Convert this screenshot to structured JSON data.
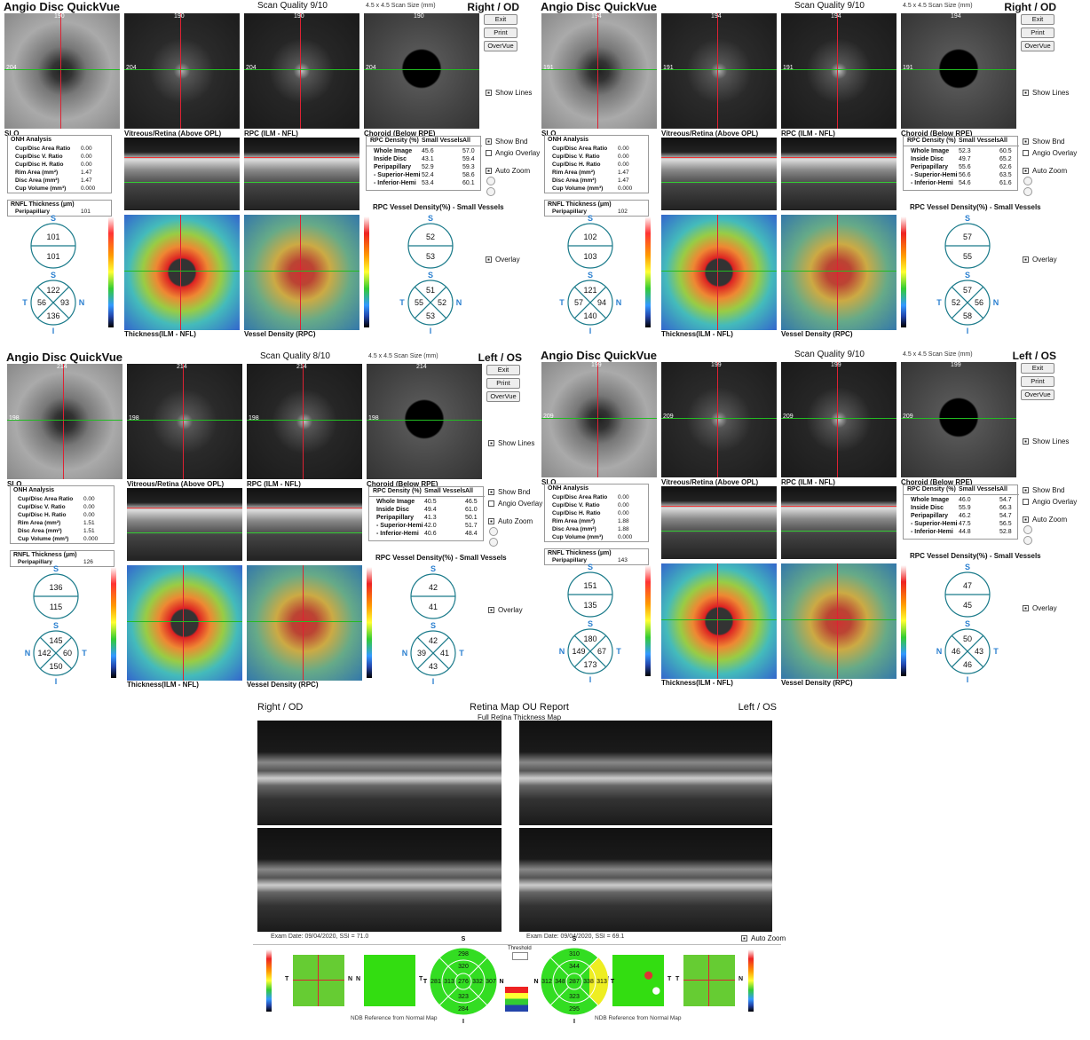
{
  "panels": [
    {
      "app_title": "Angio Disc QuickVue",
      "scan_quality": "Scan Quality 9/10",
      "scan_size": "4.5 x 4.5 Scan Size (mm)",
      "eye": "Right / OD",
      "buttons": [
        "Exit",
        "Print",
        "OverVue"
      ],
      "image_labels": [
        "SLO",
        "Vitreous/Retina (Above OPL)",
        "RPC (ILM - NFL)",
        "Choroid (Below RPE)"
      ],
      "line_labels": [
        "190",
        "204"
      ],
      "options": [
        "Show Lines",
        "Show Bnd",
        "Angio Overlay",
        "Auto Zoom",
        "Overlay"
      ],
      "onh": {
        "title": "ONH Analysis",
        "rows": [
          [
            "Cup/Disc Area Ratio",
            "0.00"
          ],
          [
            "Cup/Disc V. Ratio",
            "0.00"
          ],
          [
            "Cup/Disc H. Ratio",
            "0.00"
          ],
          [
            "Rim Area (mm²)",
            "1.47"
          ],
          [
            "Disc Area (mm²)",
            "1.47"
          ],
          [
            "Cup Volume (mm³)",
            "0.000"
          ]
        ]
      },
      "rnfl": {
        "title": "RNFL Thickness (µm)",
        "rows": [
          [
            "Peripapillary",
            "101"
          ]
        ]
      },
      "rpc": {
        "header": [
          "RPC Density (%)",
          "Small Vessels",
          "All"
        ],
        "rows": [
          [
            "Whole Image",
            "45.6",
            "57.0"
          ],
          [
            "Inside Disc",
            "43.1",
            "59.4"
          ],
          [
            "Peripapillary",
            "52.9",
            "59.3"
          ],
          [
            "- Superior-Hemi",
            "52.4",
            "58.6"
          ],
          [
            "- Inferior-Hemi",
            "53.4",
            "60.1"
          ]
        ]
      },
      "rpc_title": "RPC Vessel Density(%) - Small Vessels",
      "map_labels": [
        "Thickness(ILM - NFL)",
        "Vessel Density (RPC)"
      ],
      "rnfl_hemi": {
        "labels": [
          "S"
        ],
        "values": [
          101,
          101
        ]
      },
      "rnfl_quad": {
        "labels": [
          "S",
          "T",
          "N",
          "I"
        ],
        "values": [
          122,
          56,
          93,
          136
        ]
      },
      "vd_hemi": {
        "labels": [
          "S"
        ],
        "values": [
          52,
          53
        ]
      },
      "vd_quad": {
        "labels": [
          "S",
          "T",
          "N",
          "I"
        ],
        "values": [
          51,
          55,
          52,
          53
        ]
      }
    },
    {
      "app_title": "Angio Disc QuickVue",
      "scan_quality": "Scan Quality 9/10",
      "scan_size": "4.5 x 4.5 Scan Size (mm)",
      "eye": "Right / OD",
      "buttons": [
        "Exit",
        "Print",
        "OverVue"
      ],
      "image_labels": [
        "SLO",
        "Vitreous/Retina (Above OPL)",
        "RPC (ILM - NFL)",
        "Choroid (Below RPE)"
      ],
      "line_labels": [
        "194",
        "191"
      ],
      "options": [
        "Show Lines",
        "Show Bnd",
        "Angio Overlay",
        "Auto Zoom",
        "Overlay"
      ],
      "onh": {
        "title": "ONH Analysis",
        "rows": [
          [
            "Cup/Disc Area Ratio",
            "0.00"
          ],
          [
            "Cup/Disc V. Ratio",
            "0.00"
          ],
          [
            "Cup/Disc H. Ratio",
            "0.00"
          ],
          [
            "Rim Area (mm²)",
            "1.47"
          ],
          [
            "Disc Area (mm²)",
            "1.47"
          ],
          [
            "Cup Volume (mm³)",
            "0.000"
          ]
        ]
      },
      "rnfl": {
        "title": "RNFL Thickness (µm)",
        "rows": [
          [
            "Peripapillary",
            "102"
          ]
        ]
      },
      "rpc": {
        "header": [
          "RPC Density (%)",
          "Small Vessels",
          "All"
        ],
        "rows": [
          [
            "Whole Image",
            "52.3",
            "60.5"
          ],
          [
            "Inside Disc",
            "49.7",
            "65.2"
          ],
          [
            "Peripapillary",
            "55.6",
            "62.6"
          ],
          [
            "- Superior-Hemi",
            "56.6",
            "63.5"
          ],
          [
            "- Inferior-Hemi",
            "54.6",
            "61.6"
          ]
        ]
      },
      "rpc_title": "RPC Vessel Density(%) - Small Vessels",
      "map_labels": [
        "Thickness(ILM - NFL)",
        "Vessel Density (RPC)"
      ],
      "rnfl_hemi": {
        "labels": [
          "S"
        ],
        "values": [
          102,
          103
        ]
      },
      "rnfl_quad": {
        "labels": [
          "S",
          "T",
          "N",
          "I"
        ],
        "values": [
          121,
          57,
          94,
          140
        ]
      },
      "vd_hemi": {
        "labels": [
          "S"
        ],
        "values": [
          57,
          55
        ]
      },
      "vd_quad": {
        "labels": [
          "S",
          "T",
          "N",
          "I"
        ],
        "values": [
          57,
          52,
          56,
          58
        ]
      }
    },
    {
      "app_title": "Angio Disc QuickVue",
      "scan_quality": "Scan Quality 8/10",
      "scan_size": "4.5 x 4.5 Scan Size (mm)",
      "eye": "Left / OS",
      "buttons": [
        "Exit",
        "Print",
        "OverVue"
      ],
      "image_labels": [
        "SLO",
        "Vitreous/Retina (Above OPL)",
        "RPC (ILM - NFL)",
        "Choroid (Below RPE)"
      ],
      "line_labels": [
        "214",
        "198"
      ],
      "options": [
        "Show Lines",
        "Show Bnd",
        "Angio Overlay",
        "Auto Zoom",
        "Overlay"
      ],
      "onh": {
        "title": "ONH Analysis",
        "rows": [
          [
            "Cup/Disc Area Ratio",
            "0.00"
          ],
          [
            "Cup/Disc V. Ratio",
            "0.00"
          ],
          [
            "Cup/Disc H. Ratio",
            "0.00"
          ],
          [
            "Rim Area (mm²)",
            "1.51"
          ],
          [
            "Disc Area (mm²)",
            "1.51"
          ],
          [
            "Cup Volume (mm³)",
            "0.000"
          ]
        ]
      },
      "rnfl": {
        "title": "RNFL Thickness (µm)",
        "rows": [
          [
            "Peripapillary",
            "126"
          ]
        ]
      },
      "rpc": {
        "header": [
          "RPC Density (%)",
          "Small Vessels",
          "All"
        ],
        "rows": [
          [
            "Whole Image",
            "40.5",
            "46.5"
          ],
          [
            "Inside Disc",
            "49.4",
            "61.0"
          ],
          [
            "Peripapillary",
            "41.3",
            "50.1"
          ],
          [
            "- Superior-Hemi",
            "42.0",
            "51.7"
          ],
          [
            "- Inferior-Hemi",
            "40.6",
            "48.4"
          ]
        ]
      },
      "rpc_title": "RPC Vessel Density(%) - Small Vessels",
      "map_labels": [
        "Thickness(ILM - NFL)",
        "Vessel Density (RPC)"
      ],
      "rnfl_hemi": {
        "labels": [
          "S"
        ],
        "values": [
          136,
          115
        ]
      },
      "rnfl_quad": {
        "labels": [
          "S",
          "N",
          "T",
          "I"
        ],
        "values": [
          145,
          142,
          60,
          150
        ]
      },
      "vd_hemi": {
        "labels": [
          "S"
        ],
        "values": [
          42,
          41
        ]
      },
      "vd_quad": {
        "labels": [
          "S",
          "N",
          "T",
          "I"
        ],
        "values": [
          42,
          39,
          41,
          43
        ]
      }
    },
    {
      "app_title": "Angio Disc QuickVue",
      "scan_quality": "Scan Quality 9/10",
      "scan_size": "4.5 x 4.5 Scan Size (mm)",
      "eye": "Left / OS",
      "buttons": [
        "Exit",
        "Print",
        "OverVue"
      ],
      "image_labels": [
        "SLO",
        "Vitreous/Retina (Above OPL)",
        "RPC (ILM - NFL)",
        "Choroid (Below RPE)"
      ],
      "line_labels": [
        "199",
        "209"
      ],
      "options": [
        "Show Lines",
        "Show Bnd",
        "Angio Overlay",
        "Auto Zoom",
        "Overlay"
      ],
      "onh": {
        "title": "ONH Analysis",
        "rows": [
          [
            "Cup/Disc Area Ratio",
            "0.00"
          ],
          [
            "Cup/Disc V. Ratio",
            "0.00"
          ],
          [
            "Cup/Disc H. Ratio",
            "0.00"
          ],
          [
            "Rim Area (mm²)",
            "1.88"
          ],
          [
            "Disc Area (mm²)",
            "1.88"
          ],
          [
            "Cup Volume (mm³)",
            "0.000"
          ]
        ]
      },
      "rnfl": {
        "title": "RNFL Thickness (µm)",
        "rows": [
          [
            "Peripapillary",
            "143"
          ]
        ]
      },
      "rpc": {
        "header": [
          "RPC Density (%)",
          "Small Vessels",
          "All"
        ],
        "rows": [
          [
            "Whole Image",
            "46.0",
            "54.7"
          ],
          [
            "Inside Disc",
            "55.9",
            "66.3"
          ],
          [
            "Peripapillary",
            "46.2",
            "54.7"
          ],
          [
            "- Superior-Hemi",
            "47.5",
            "56.5"
          ],
          [
            "- Inferior-Hemi",
            "44.8",
            "52.8"
          ]
        ]
      },
      "rpc_title": "RPC Vessel Density(%) - Small Vessels",
      "map_labels": [
        "Thickness(ILM - NFL)",
        "Vessel Density (RPC)"
      ],
      "rnfl_hemi": {
        "labels": [
          "S"
        ],
        "values": [
          151,
          135
        ]
      },
      "rnfl_quad": {
        "labels": [
          "S",
          "N",
          "T",
          "I"
        ],
        "values": [
          180,
          149,
          67,
          173
        ]
      },
      "vd_hemi": {
        "labels": [
          "S"
        ],
        "values": [
          47,
          45
        ]
      },
      "vd_quad": {
        "labels": [
          "S",
          "N",
          "T",
          "I"
        ],
        "values": [
          50,
          46,
          43,
          46
        ]
      }
    }
  ],
  "report": {
    "left_eye": "Right / OD",
    "title": "Retina Map OU Report",
    "subtitle": "Full Retina Thickness Map",
    "right_eye": "Left / OS",
    "exam": [
      "Exam Date: 09/04/2020, SSI = 71.0",
      "Exam Date: 09/04/2020, SSI = 69.1"
    ],
    "auto_zoom": "Auto Zoom",
    "threshold": "Threshold",
    "ndb": [
      "NDB Reference from Normal Map",
      "NDB Reference from Normal Map"
    ],
    "map_axes": [
      [
        "T",
        "N"
      ],
      [
        "N",
        "T"
      ],
      [
        "N",
        "T"
      ],
      [
        "T",
        "N"
      ]
    ],
    "etdrs": [
      {
        "labels": [
          "S",
          "T",
          "N",
          "I"
        ],
        "values": [
          298,
          320,
          276,
          313,
          332,
          281,
          307,
          323,
          284
        ]
      },
      {
        "labels": [
          "S",
          "N",
          "T",
          "I"
        ],
        "values": [
          310,
          344,
          287,
          348,
          338,
          312,
          313,
          323,
          295
        ]
      }
    ]
  }
}
